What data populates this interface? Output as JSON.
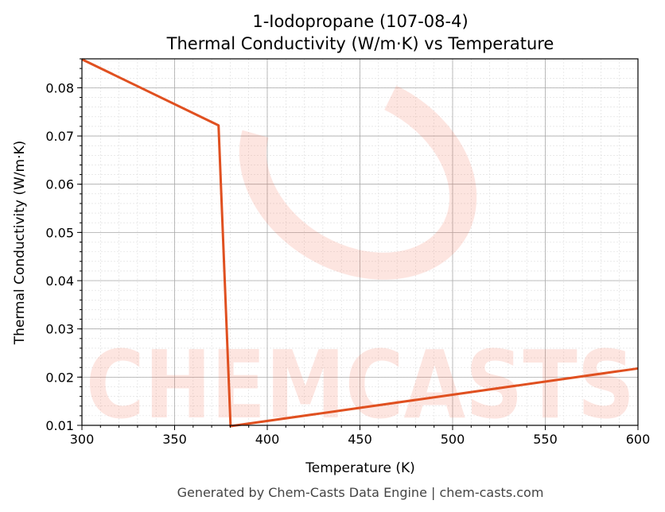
{
  "chart_data": {
    "type": "line",
    "title": "1-Iodopropane (107-08-4)",
    "subtitle": "Thermal Conductivity (W/m·K) vs Temperature",
    "xlabel": "Temperature (K)",
    "ylabel": "Thermal Conductivity (W/m·K)",
    "xlim": [
      300,
      600
    ],
    "ylim": [
      0.01,
      0.086
    ],
    "xticks": [
      300,
      350,
      400,
      450,
      500,
      550,
      600
    ],
    "yticks": [
      0.01,
      0.02,
      0.03,
      0.04,
      0.05,
      0.06,
      0.07,
      0.08
    ],
    "grid": true,
    "series": [
      {
        "x": [
          300,
          373.7,
          380.2,
          600
        ],
        "y": [
          0.0859,
          0.0722,
          0.0096,
          0.0218
        ],
        "color": "#e05020"
      }
    ]
  },
  "watermark": "CHEMCASTS",
  "footer": "Generated by Chem-Casts Data Engine | chem-casts.com"
}
